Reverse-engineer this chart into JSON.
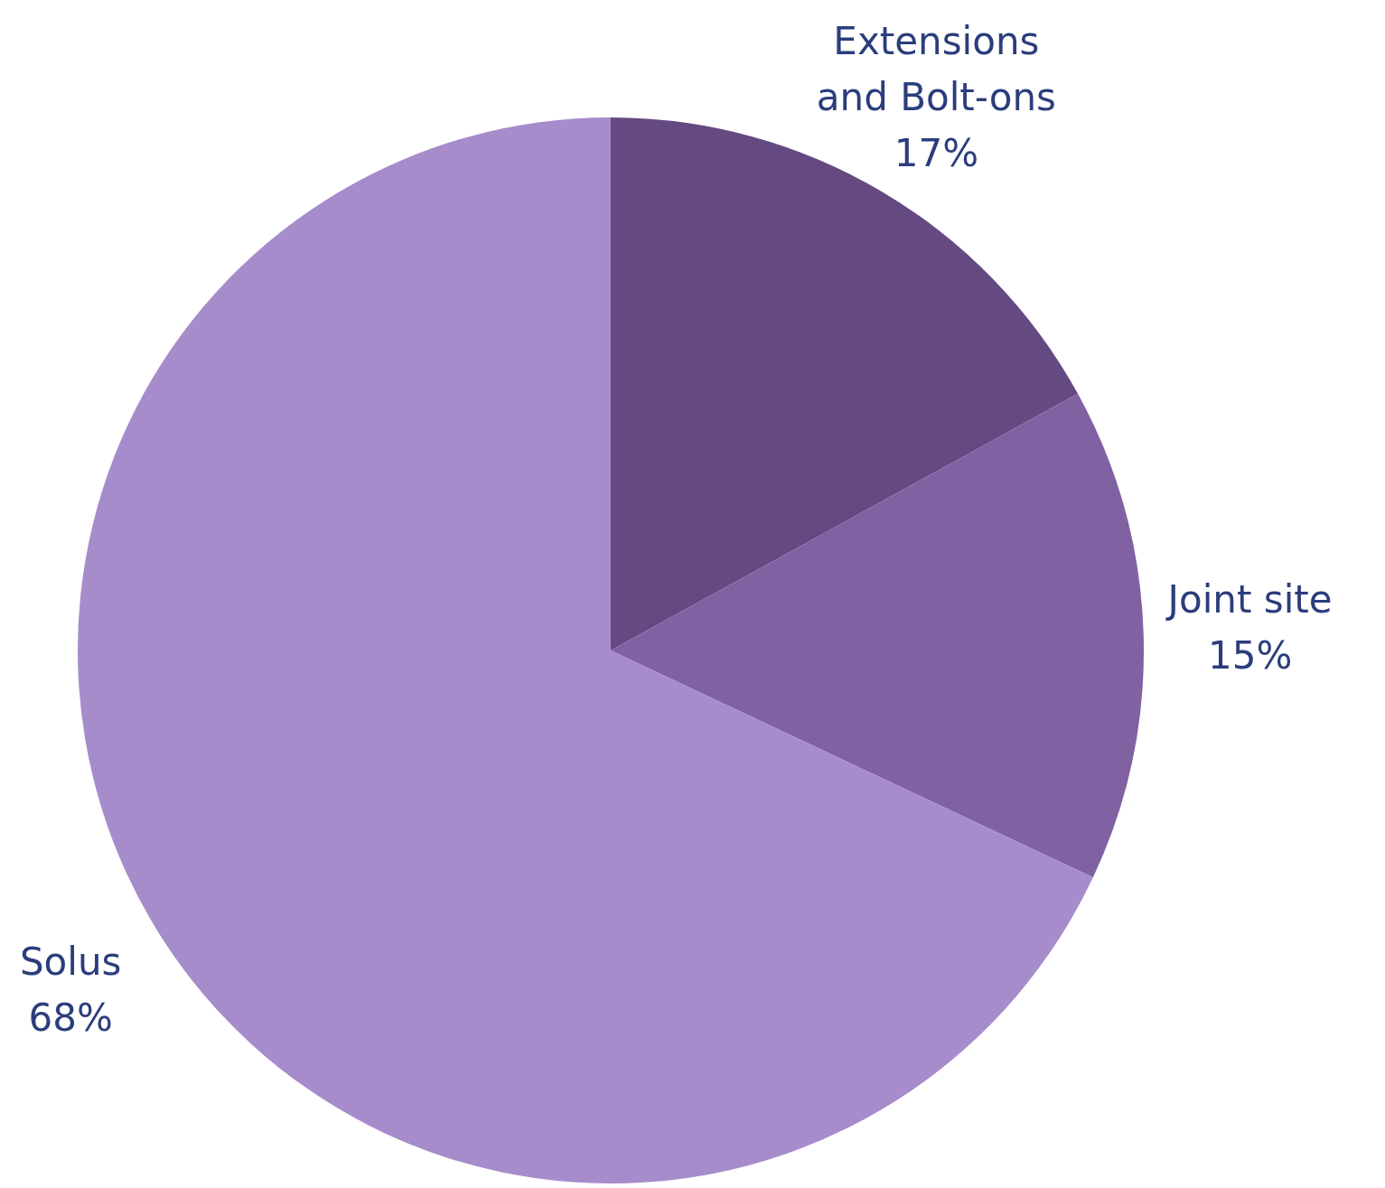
{
  "chart_data": {
    "type": "pie",
    "categories": [
      "Extensions and Bolt-ons",
      "Joint site",
      "Solus"
    ],
    "values": [
      17,
      15,
      68
    ],
    "colors": [
      "#654a82",
      "#8061a2",
      "#a78ccb"
    ],
    "value_labels": [
      "17%",
      "15%",
      "68%"
    ]
  }
}
